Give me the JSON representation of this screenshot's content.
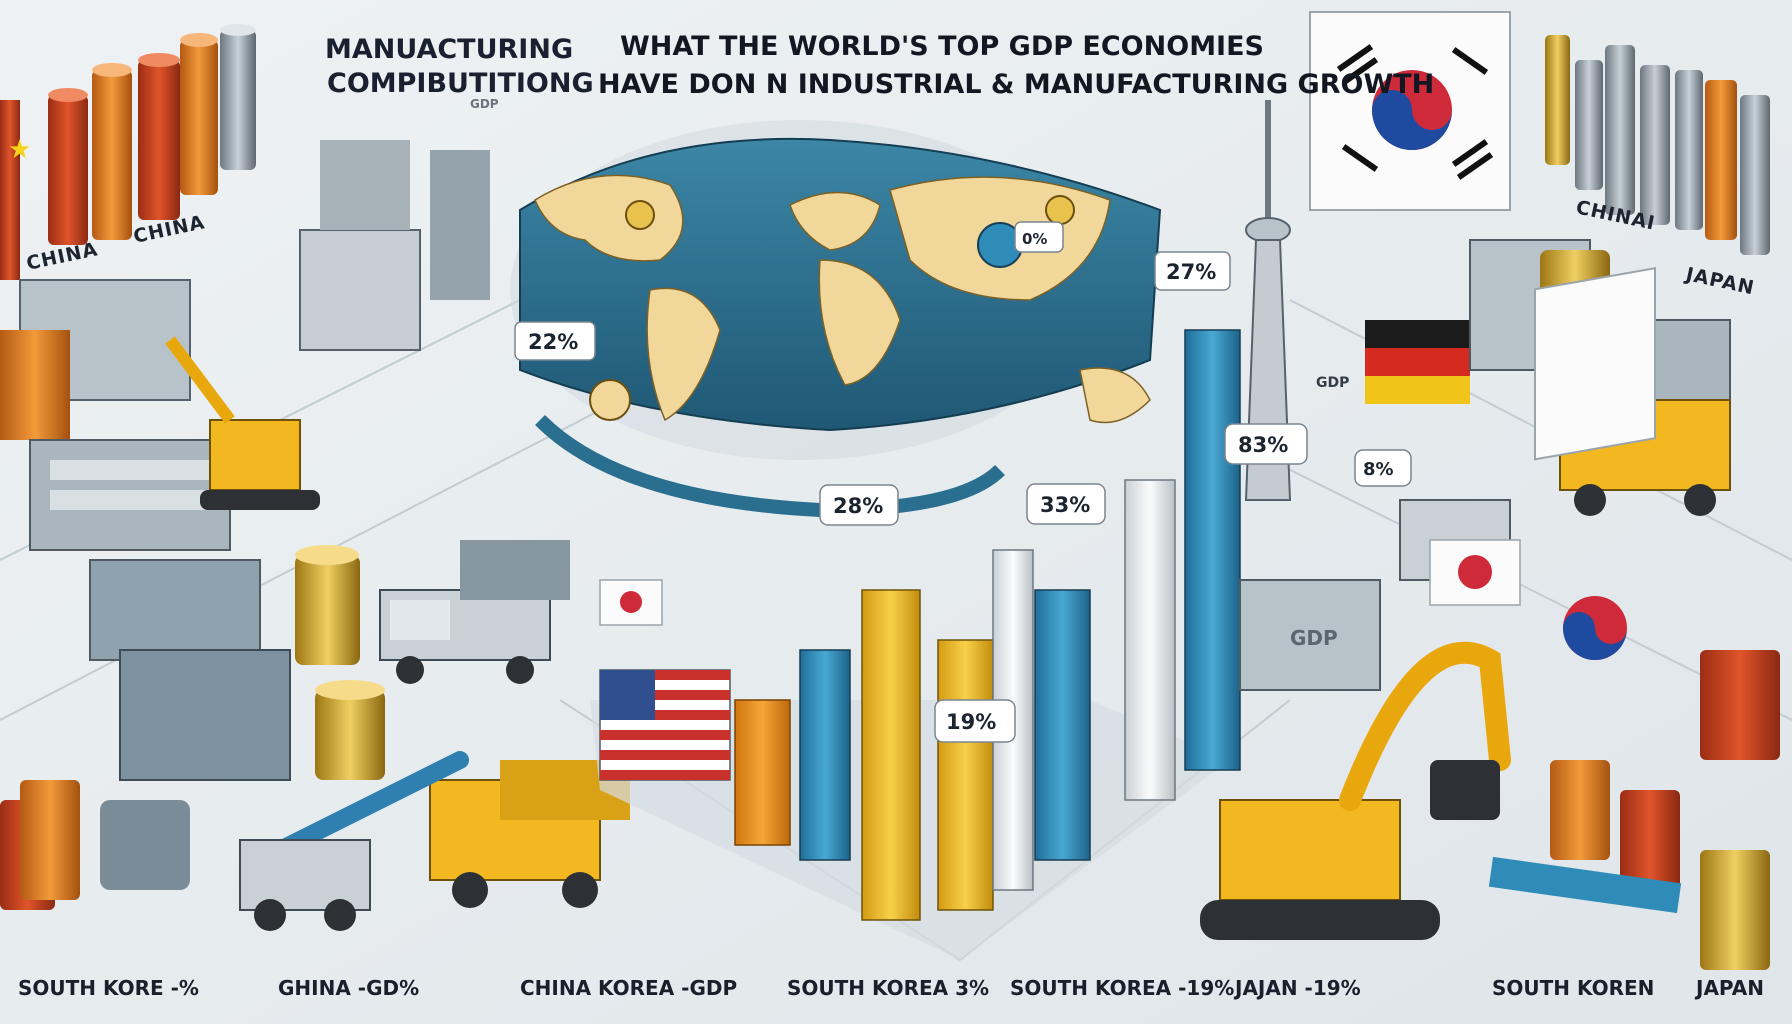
{
  "title": {
    "line1": "WHAT THE WORLD'S TOP GDP ECONOMIES",
    "line2": "HAVE DON N INDUSTRIAL & MANUFACTURING GROWTH"
  },
  "left_title": {
    "line1": "MANUACTURING",
    "line2": "COMPIBUTITIONG",
    "line3": "GDP"
  },
  "country_labels": {
    "left_a": "CHINA",
    "left_b": "CHINA",
    "right_a": "CHINAI",
    "right_b": "JAPAN"
  },
  "map_callouts": [
    "27%",
    "0%",
    "22%"
  ],
  "bar_callouts": [
    "28%",
    "33%",
    "83%",
    "8%",
    "19%"
  ],
  "bar_tags": [
    "GDP",
    "GDP"
  ],
  "bottom_labels": [
    "SOUTH KORE -%",
    "GHINA -GD%",
    "CHINA KOREA -GDP",
    "SOUTH KOREA 3%",
    "SOUTH KOREA -19%",
    "JAJAN -19%",
    "SOUTH KOREN",
    "JAPAN"
  ],
  "colors": {
    "background": "#e6ebee",
    "map_land": "#f1d79a",
    "map_ocean": "#2a6f8f",
    "bar_blue": "#2f8cb8",
    "bar_yellow": "#f2c230",
    "bar_orange": "#ef9a1e",
    "bar_white": "#eef1f3",
    "barrel_red": "#c9421f",
    "barrel_orange": "#e57a23",
    "machine_yellow": "#f3b81f"
  }
}
